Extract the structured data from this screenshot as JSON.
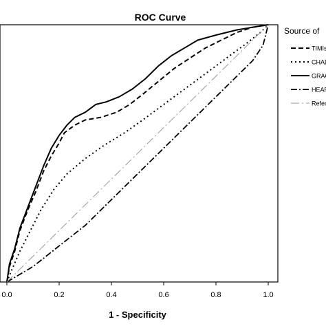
{
  "chart_data": {
    "type": "line",
    "title": "ROC Curve",
    "xlabel": "1 - Specificity",
    "ylabel": "",
    "xlim": [
      0.0,
      1.0
    ],
    "ylim": [
      0.0,
      1.0
    ],
    "x_ticks": [
      "0.0",
      "0.2",
      "0.4",
      "0.6",
      "0.8",
      "1.0"
    ],
    "grid": false,
    "legend": {
      "title": "Source of",
      "placement": "right"
    },
    "series": [
      {
        "name": "TIMIsc",
        "style": "dashed",
        "points": [
          [
            0,
            0
          ],
          [
            0.01,
            0.06
          ],
          [
            0.03,
            0.12
          ],
          [
            0.05,
            0.2
          ],
          [
            0.08,
            0.28
          ],
          [
            0.11,
            0.35
          ],
          [
            0.14,
            0.43
          ],
          [
            0.17,
            0.49
          ],
          [
            0.2,
            0.54
          ],
          [
            0.22,
            0.58
          ],
          [
            0.26,
            0.61
          ],
          [
            0.3,
            0.63
          ],
          [
            0.36,
            0.64
          ],
          [
            0.42,
            0.66
          ],
          [
            0.47,
            0.69
          ],
          [
            0.52,
            0.73
          ],
          [
            0.58,
            0.78
          ],
          [
            0.64,
            0.83
          ],
          [
            0.7,
            0.87
          ],
          [
            0.76,
            0.91
          ],
          [
            0.82,
            0.94
          ],
          [
            0.88,
            0.97
          ],
          [
            0.94,
            0.99
          ],
          [
            1.0,
            1.0
          ]
        ]
      },
      {
        "name": "CHADS",
        "style": "dotted",
        "points": [
          [
            0,
            0
          ],
          [
            0.02,
            0.05
          ],
          [
            0.05,
            0.12
          ],
          [
            0.09,
            0.2
          ],
          [
            0.13,
            0.28
          ],
          [
            0.18,
            0.36
          ],
          [
            0.23,
            0.42
          ],
          [
            0.3,
            0.48
          ],
          [
            0.37,
            0.53
          ],
          [
            0.45,
            0.58
          ],
          [
            0.52,
            0.63
          ],
          [
            0.6,
            0.69
          ],
          [
            0.68,
            0.75
          ],
          [
            0.76,
            0.81
          ],
          [
            0.84,
            0.87
          ],
          [
            0.92,
            0.93
          ],
          [
            0.97,
            0.97
          ],
          [
            1.0,
            1.0
          ]
        ]
      },
      {
        "name": "GRAC",
        "style": "solid",
        "points": [
          [
            0,
            0
          ],
          [
            0.01,
            0.07
          ],
          [
            0.03,
            0.13
          ],
          [
            0.05,
            0.21
          ],
          [
            0.08,
            0.29
          ],
          [
            0.11,
            0.37
          ],
          [
            0.14,
            0.45
          ],
          [
            0.17,
            0.52
          ],
          [
            0.2,
            0.57
          ],
          [
            0.23,
            0.61
          ],
          [
            0.26,
            0.64
          ],
          [
            0.3,
            0.66
          ],
          [
            0.34,
            0.69
          ],
          [
            0.38,
            0.7
          ],
          [
            0.43,
            0.72
          ],
          [
            0.48,
            0.75
          ],
          [
            0.53,
            0.79
          ],
          [
            0.58,
            0.84
          ],
          [
            0.63,
            0.88
          ],
          [
            0.68,
            0.91
          ],
          [
            0.73,
            0.94
          ],
          [
            0.8,
            0.96
          ],
          [
            0.88,
            0.98
          ],
          [
            0.94,
            0.99
          ],
          [
            1.0,
            1.0
          ]
        ]
      },
      {
        "name": "HEART",
        "style": "dash-dot",
        "points": [
          [
            0,
            0
          ],
          [
            0.05,
            0.03
          ],
          [
            0.1,
            0.06
          ],
          [
            0.15,
            0.1
          ],
          [
            0.2,
            0.14
          ],
          [
            0.3,
            0.22
          ],
          [
            0.4,
            0.32
          ],
          [
            0.5,
            0.42
          ],
          [
            0.6,
            0.52
          ],
          [
            0.7,
            0.62
          ],
          [
            0.8,
            0.72
          ],
          [
            0.88,
            0.8
          ],
          [
            0.94,
            0.86
          ],
          [
            0.98,
            0.92
          ],
          [
            1.0,
            1.0
          ]
        ]
      },
      {
        "name": "Refere",
        "style": "long-dash-dot",
        "points": [
          [
            0,
            0
          ],
          [
            1.0,
            1.0
          ]
        ]
      }
    ]
  }
}
